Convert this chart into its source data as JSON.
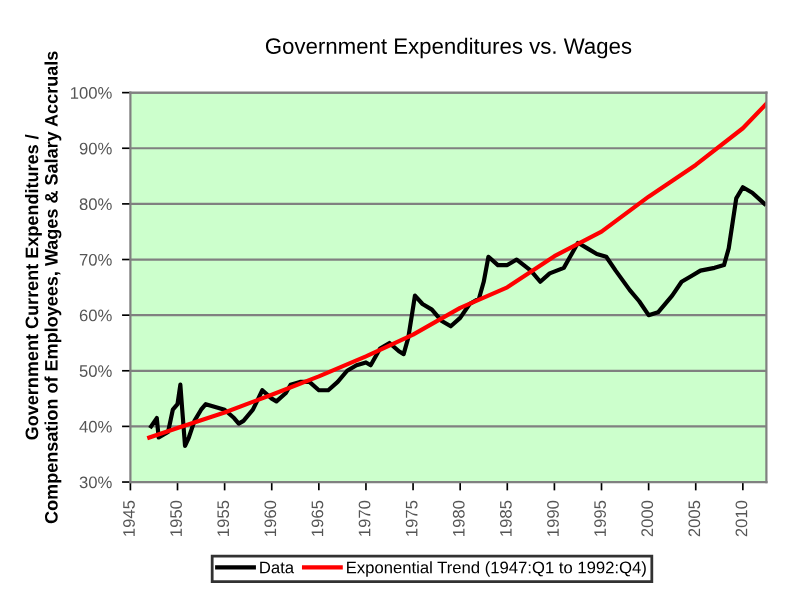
{
  "chart_data": {
    "type": "line",
    "title": "Government Expenditures vs. Wages",
    "ylabel": "Government Current Expenditures /\nCompensation of Employees, Wages & Salary Accruals",
    "xlim": [
      1945,
      2012.5
    ],
    "xticks": [
      1945,
      1950,
      1955,
      1960,
      1965,
      1970,
      1975,
      1980,
      1985,
      1990,
      1995,
      2000,
      2005,
      2010
    ],
    "ylim": [
      30,
      100
    ],
    "yticks": [
      {
        "value": 30,
        "label": "30%"
      },
      {
        "value": 40,
        "label": "40%"
      },
      {
        "value": 50,
        "label": "50%"
      },
      {
        "value": 60,
        "label": "60%"
      },
      {
        "value": 70,
        "label": "70%"
      },
      {
        "value": 80,
        "label": "80%"
      },
      {
        "value": 90,
        "label": "90%"
      },
      {
        "value": 100,
        "label": "100%"
      }
    ],
    "grid": "y",
    "legend": "bottom",
    "line_style": "solid",
    "marker": "none",
    "series": [
      {
        "name": "Data",
        "color": "#000000",
        "x": [
          1947.2,
          1947.8,
          1948,
          1949,
          1949.5,
          1950,
          1950.3,
          1950.5,
          1950.8,
          1951.2,
          1951.8,
          1952.5,
          1953,
          1954,
          1955,
          1956,
          1956.5,
          1957,
          1958,
          1959,
          1960,
          1960.5,
          1961.5,
          1962,
          1963,
          1964,
          1965,
          1966,
          1967,
          1968,
          1969,
          1970,
          1970.5,
          1971.5,
          1972.5,
          1973.5,
          1974,
          1974.5,
          1975.2,
          1976,
          1977,
          1978,
          1979,
          1980,
          1981,
          1982,
          1982.5,
          1983,
          1984,
          1985,
          1986,
          1987.5,
          1988.5,
          1989.5,
          1991,
          1991.5,
          1992.5,
          1993.5,
          1994.5,
          1995.5,
          1996.5,
          1998,
          1999,
          2000,
          2001,
          2002.5,
          2003.5,
          2004.5,
          2005.5,
          2007,
          2008,
          2008.5,
          2009.3,
          2010,
          2011,
          2012.3
        ],
        "values": [
          40,
          41.5,
          38,
          39,
          43,
          44,
          47.5,
          43,
          36.5,
          38,
          41,
          43,
          44,
          43.5,
          43,
          41.5,
          40.5,
          41,
          43,
          46.5,
          45,
          44.5,
          46,
          47.5,
          48,
          48,
          46.5,
          46.5,
          48,
          50,
          51,
          51.5,
          51,
          54,
          55,
          53.5,
          53,
          56,
          63.5,
          62,
          61,
          59,
          58,
          59.5,
          62,
          63,
          66,
          70.5,
          69,
          69,
          70,
          68,
          66,
          67.5,
          68.5,
          70,
          73,
          72,
          71,
          70.5,
          68,
          64.5,
          62.5,
          60,
          60.5,
          63.5,
          66,
          67,
          68,
          68.5,
          69,
          72,
          81,
          83,
          82,
          80
        ]
      },
      {
        "name": "Exponential Trend (1947:Q1 to 1992:Q4)",
        "color": "#ff0000",
        "x": [
          1947,
          1950,
          1955,
          1960,
          1965,
          1970,
          1975,
          1980,
          1985,
          1990,
          1995,
          2000,
          2005,
          2010,
          2012.5
        ],
        "values": [
          38,
          39.7,
          42.5,
          45.7,
          49,
          52.6,
          56.5,
          61.3,
          65,
          70.6,
          75,
          81.3,
          87,
          93.6,
          98
        ]
      }
    ]
  }
}
